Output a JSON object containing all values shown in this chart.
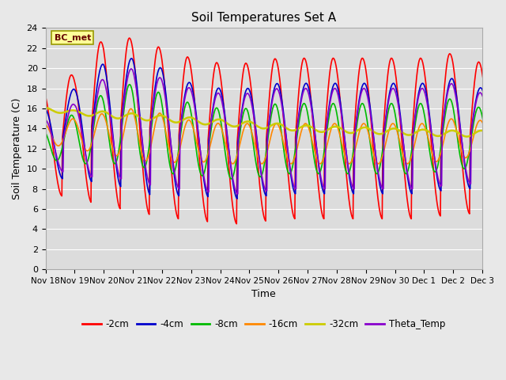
{
  "title": "Soil Temperatures Set A",
  "xlabel": "Time",
  "ylabel": "Soil Temperature (C)",
  "ylim": [
    0,
    24
  ],
  "background_color": "#e8e8e8",
  "plot_bg_color": "#dcdcdc",
  "grid_color": "#ffffff",
  "annotation_text": "BC_met",
  "annotation_bg": "#ffff99",
  "annotation_border": "#999900",
  "xtick_labels": [
    "Nov 18",
    "Nov 19",
    "Nov 20",
    "Nov 21",
    "Nov 22",
    "Nov 23",
    "Nov 24",
    "Nov 25",
    "Nov 26",
    "Nov 27",
    "Nov 28",
    "Nov 29",
    "Nov 30",
    "Dec 1",
    "Dec 2",
    "Dec 3"
  ],
  "legend": [
    "-2cm",
    "-4cm",
    "-8cm",
    "-16cm",
    "-32cm",
    "Theta_Temp"
  ],
  "line_colors": [
    "#ff0000",
    "#0000cc",
    "#00bb00",
    "#ff8800",
    "#cccc00",
    "#8800cc"
  ],
  "line_widths": [
    1.2,
    1.2,
    1.2,
    1.2,
    1.8,
    1.2
  ]
}
